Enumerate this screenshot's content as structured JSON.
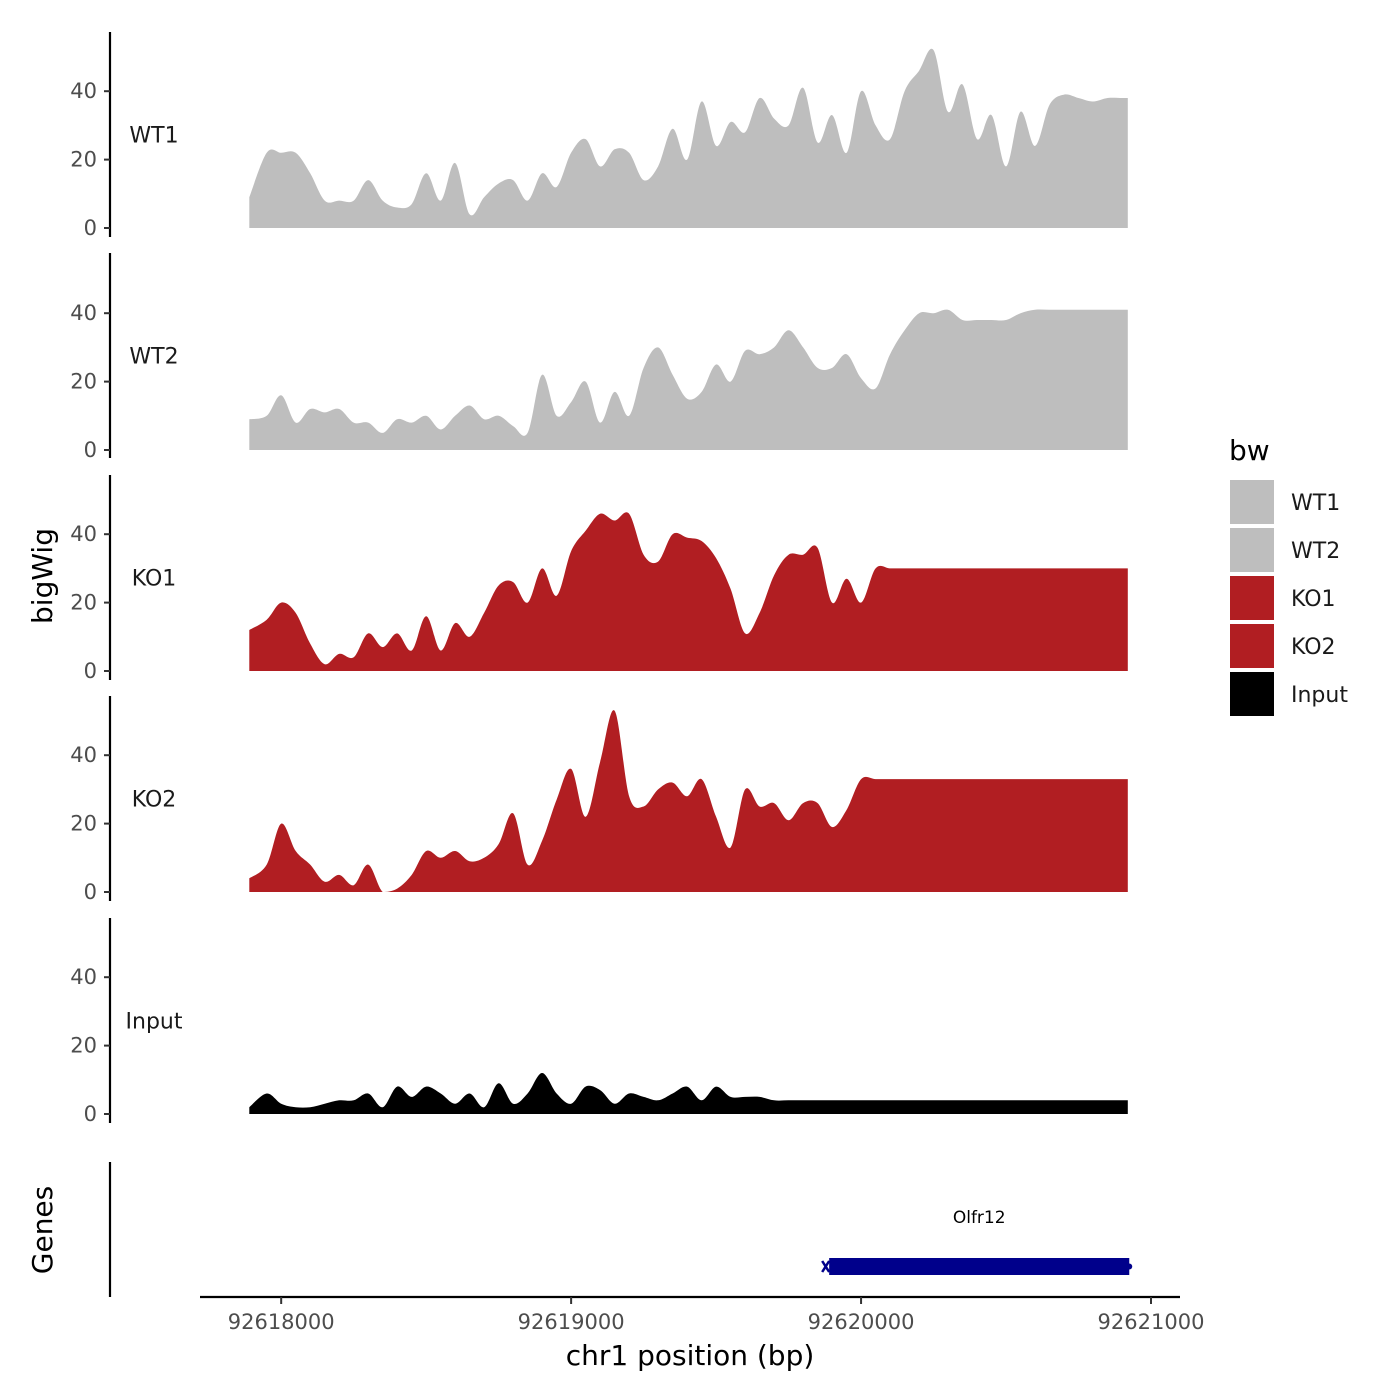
{
  "chart_data": {
    "type": "area",
    "ylabel": "bigWig",
    "xlabel": "chr1 position (bp)",
    "x_ticks": [
      92618000,
      92619000,
      92620000,
      92621000
    ],
    "x_range": [
      92617720,
      92621100
    ],
    "y_ticks": [
      0,
      20,
      40
    ],
    "ylim": [
      0,
      57
    ],
    "legend": {
      "title": "bw",
      "position": "right"
    },
    "positions": [
      92617890,
      92617950,
      92618000,
      92618050,
      92618100,
      92618150,
      92618200,
      92618250,
      92618300,
      92618350,
      92618400,
      92618450,
      92618500,
      92618550,
      92618600,
      92618650,
      92618700,
      92618750,
      92618800,
      92618850,
      92618900,
      92618950,
      92619000,
      92619050,
      92619100,
      92619150,
      92619200,
      92619250,
      92619300,
      92619350,
      92619400,
      92619450,
      92619500,
      92619550,
      92619600,
      92619650,
      92619700,
      92619750,
      92619800,
      92619850,
      92619900,
      92619950,
      92620000,
      92620050,
      92620100,
      92620150,
      92620200,
      92620250,
      92620300,
      92620350,
      92620400,
      92620450,
      92620500,
      92620550,
      92620600,
      92620650,
      92620700,
      92620750,
      92620800,
      92620850,
      92620900,
      92620920
    ],
    "series": [
      {
        "name": "WT1",
        "color": "#bebebe",
        "values": [
          9,
          22,
          22,
          22,
          16,
          8,
          8,
          8,
          14,
          8,
          6,
          7,
          16,
          8,
          19,
          4,
          9,
          13,
          14,
          8,
          16,
          12,
          22,
          26,
          18,
          23,
          22,
          14,
          18,
          29,
          20,
          37,
          24,
          31,
          28,
          38,
          32,
          30,
          41,
          25,
          33,
          22,
          40,
          30,
          26,
          40,
          46,
          52,
          34,
          42,
          26,
          33,
          18,
          34,
          24,
          36,
          39,
          38,
          37,
          38,
          38,
          38
        ]
      },
      {
        "name": "WT2",
        "color": "#bebebe",
        "values": [
          9,
          10,
          16,
          8,
          12,
          11,
          12,
          8,
          8,
          5,
          9,
          8,
          10,
          6,
          10,
          13,
          9,
          10,
          7,
          5,
          22,
          10,
          14,
          20,
          8,
          17,
          10,
          24,
          30,
          22,
          15,
          17,
          25,
          20,
          29,
          28,
          30,
          35,
          30,
          24,
          24,
          28,
          21,
          18,
          28,
          35,
          40,
          40,
          41,
          38,
          38,
          38,
          38,
          40,
          41,
          41,
          41,
          41,
          41,
          41,
          41,
          41
        ]
      },
      {
        "name": "KO1",
        "color": "#b11e22",
        "values": [
          12,
          15,
          20,
          17,
          8,
          2,
          5,
          4,
          11,
          7,
          11,
          6,
          16,
          6,
          14,
          10,
          17,
          25,
          26,
          20,
          30,
          22,
          35,
          41,
          46,
          44,
          46,
          34,
          32,
          40,
          39,
          38,
          33,
          24,
          11,
          17,
          28,
          34,
          34,
          36,
          20,
          27,
          20,
          30,
          30,
          30,
          30,
          30,
          30,
          30,
          30,
          30,
          30,
          30,
          30,
          30,
          30,
          30,
          30,
          30,
          30,
          30
        ]
      },
      {
        "name": "KO2",
        "color": "#b11e22",
        "values": [
          4,
          8,
          20,
          12,
          8,
          3,
          5,
          2,
          8,
          0,
          1,
          5,
          12,
          10,
          12,
          9,
          10,
          14,
          23,
          8,
          15,
          27,
          36,
          22,
          38,
          53,
          28,
          25,
          30,
          32,
          28,
          33,
          22,
          13,
          30,
          25,
          26,
          21,
          26,
          26,
          19,
          24,
          33,
          33,
          33,
          33,
          33,
          33,
          33,
          33,
          33,
          33,
          33,
          33,
          33,
          33,
          33,
          33,
          33,
          33,
          33,
          33
        ]
      },
      {
        "name": "Input",
        "color": "#000000",
        "values": [
          2,
          6,
          3,
          2,
          2,
          3,
          4,
          4,
          6,
          2,
          8,
          5,
          8,
          6,
          3,
          6,
          2,
          9,
          3,
          6,
          12,
          6,
          3,
          8,
          7,
          3,
          6,
          5,
          4,
          6,
          8,
          4,
          8,
          5,
          5,
          5,
          4,
          4,
          4,
          4,
          4,
          4,
          4,
          4,
          4,
          4,
          4,
          4,
          4,
          4,
          4,
          4,
          4,
          4,
          4,
          4,
          4,
          4,
          4,
          4,
          4,
          4
        ]
      }
    ],
    "genes": {
      "title": "Genes",
      "items": [
        {
          "name": "Olfr12",
          "start": 92619890,
          "end": 92620925,
          "color": "#00008b"
        }
      ]
    }
  }
}
